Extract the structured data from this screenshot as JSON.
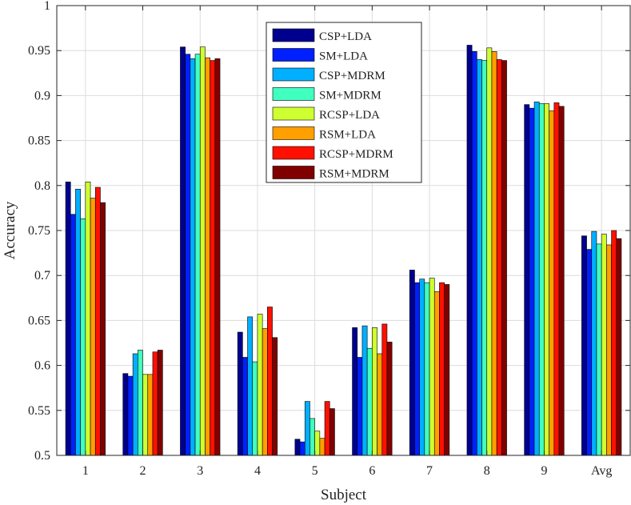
{
  "chart_data": {
    "type": "bar",
    "xlabel": "Subject",
    "ylabel": "Accuracy",
    "categories": [
      "1",
      "2",
      "3",
      "4",
      "5",
      "6",
      "7",
      "8",
      "9",
      "Avg"
    ],
    "ylim": [
      0.5,
      1
    ],
    "yticks": [
      "0.5",
      "0.55",
      "0.6",
      "0.65",
      "0.7",
      "0.75",
      "0.8",
      "0.85",
      "0.9",
      "0.95",
      "1"
    ],
    "grid": true,
    "legend_position": "top-center",
    "series": [
      {
        "name": "CSP+LDA",
        "color": "#00008f",
        "values": [
          0.804,
          0.591,
          0.954,
          0.637,
          0.518,
          0.642,
          0.706,
          0.956,
          0.89,
          0.744
        ]
      },
      {
        "name": "SM+LDA",
        "color": "#0020ff",
        "values": [
          0.768,
          0.588,
          0.946,
          0.609,
          0.515,
          0.609,
          0.692,
          0.949,
          0.886,
          0.729
        ]
      },
      {
        "name": "CSP+MDRM",
        "color": "#00afff",
        "values": [
          0.796,
          0.613,
          0.941,
          0.654,
          0.56,
          0.644,
          0.696,
          0.94,
          0.893,
          0.749
        ]
      },
      {
        "name": "SM+MDRM",
        "color": "#40ffbf",
        "values": [
          0.763,
          0.617,
          0.946,
          0.604,
          0.541,
          0.619,
          0.692,
          0.939,
          0.891,
          0.735
        ]
      },
      {
        "name": "RCSP+LDA",
        "color": "#cfff30",
        "values": [
          0.804,
          0.59,
          0.954,
          0.657,
          0.527,
          0.642,
          0.697,
          0.953,
          0.891,
          0.746
        ]
      },
      {
        "name": "RSM+LDA",
        "color": "#ff9f00",
        "values": [
          0.786,
          0.59,
          0.942,
          0.641,
          0.519,
          0.613,
          0.682,
          0.949,
          0.883,
          0.734
        ]
      },
      {
        "name": "RCSP+MDRM",
        "color": "#ff1000",
        "values": [
          0.798,
          0.615,
          0.939,
          0.665,
          0.56,
          0.646,
          0.692,
          0.94,
          0.892,
          0.75
        ]
      },
      {
        "name": "RSM+MDRM",
        "color": "#800000",
        "values": [
          0.781,
          0.617,
          0.941,
          0.631,
          0.552,
          0.626,
          0.69,
          0.939,
          0.888,
          0.741
        ]
      }
    ]
  }
}
